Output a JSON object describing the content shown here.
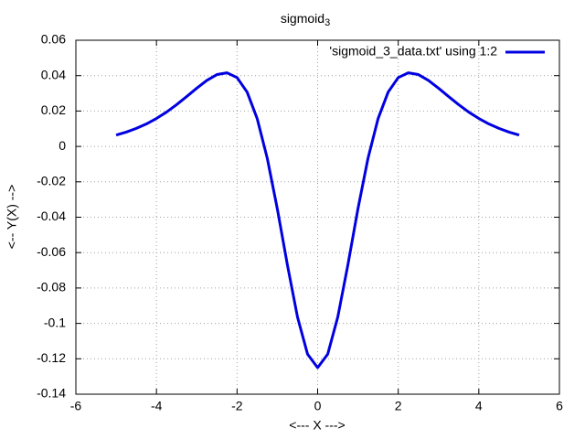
{
  "chart_data": {
    "type": "line",
    "title": "sigmoid",
    "title_subscript": "3",
    "x_label": "<--- X --->",
    "y_label": "<-- Y(X) -->",
    "x": [
      -5,
      -4.75,
      -4.5,
      -4.25,
      -4,
      -3.75,
      -3.5,
      -3.25,
      -3,
      -2.75,
      -2.5,
      -2.25,
      -2,
      -1.75,
      -1.5,
      -1.25,
      -1,
      -0.75,
      -0.5,
      -0.25,
      0,
      0.25,
      0.5,
      0.75,
      1,
      1.25,
      1.5,
      1.75,
      2,
      2.25,
      2.5,
      2.75,
      3,
      3.25,
      3.5,
      3.75,
      4,
      4.25,
      4.5,
      4.75,
      5
    ],
    "series": [
      {
        "name": "'sigmoid_3_data.txt' using 1:2",
        "color": "#0000e0",
        "values": [
          0.0064,
          0.0081,
          0.0102,
          0.0127,
          0.0158,
          0.0194,
          0.0236,
          0.0282,
          0.0329,
          0.0373,
          0.0406,
          0.0416,
          0.0389,
          0.0307,
          0.0157,
          -0.0067,
          -0.0353,
          -0.067,
          -0.0964,
          -0.1174,
          -0.125,
          -0.1174,
          -0.0964,
          -0.067,
          -0.0353,
          -0.0067,
          0.0157,
          0.0307,
          0.0389,
          0.0416,
          0.0406,
          0.0373,
          0.0329,
          0.0282,
          0.0236,
          0.0194,
          0.0158,
          0.0127,
          0.0102,
          0.0081,
          0.0064
        ]
      }
    ],
    "xlim": [
      -6,
      6
    ],
    "xticks": [
      -6,
      -4,
      -2,
      0,
      2,
      4,
      6
    ],
    "ylim": [
      -0.14,
      0.06
    ],
    "yticks": [
      -0.14,
      -0.12,
      -0.1,
      -0.08,
      -0.06,
      -0.04,
      -0.02,
      0,
      0.02,
      0.04,
      0.06
    ],
    "grid": true,
    "legend": "top-right"
  }
}
